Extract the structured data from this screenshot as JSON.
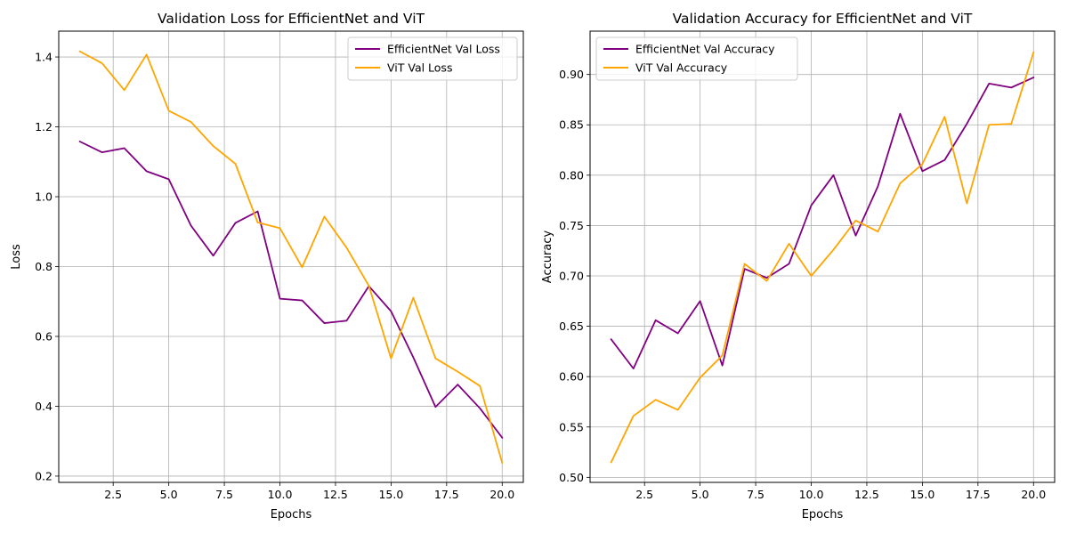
{
  "chart_data": [
    {
      "type": "line",
      "title": "Validation Loss for EfficientNet and ViT",
      "xlabel": "Epochs",
      "ylabel": "Loss",
      "xlim": [
        0.05,
        20.95
      ],
      "ylim": [
        0.182,
        1.474
      ],
      "xticks": [
        2.5,
        5.0,
        7.5,
        10.0,
        12.5,
        15.0,
        17.5,
        20.0
      ],
      "xtick_labels": [
        "2.5",
        "5.0",
        "7.5",
        "10.0",
        "12.5",
        "15.0",
        "17.5",
        "20.0"
      ],
      "yticks": [
        0.2,
        0.4,
        0.6,
        0.8,
        1.0,
        1.2,
        1.4
      ],
      "ytick_labels": [
        "0.2",
        "0.4",
        "0.6",
        "0.8",
        "1.0",
        "1.2",
        "1.4"
      ],
      "grid": true,
      "legend_position": "top-right",
      "x": [
        1,
        2,
        3,
        4,
        5,
        6,
        7,
        8,
        9,
        10,
        11,
        12,
        13,
        14,
        15,
        16,
        17,
        18,
        19,
        20
      ],
      "series": [
        {
          "name": "EfficientNet Val Loss",
          "color": "#800080",
          "values": [
            1.158,
            1.127,
            1.139,
            1.073,
            1.05,
            0.917,
            0.831,
            0.925,
            0.958,
            0.708,
            0.703,
            0.638,
            0.645,
            0.744,
            0.672,
            0.54,
            0.398,
            0.462,
            0.394,
            0.31
          ]
        },
        {
          "name": "ViT Val Loss",
          "color": "#FFA500",
          "values": [
            1.416,
            1.382,
            1.305,
            1.407,
            1.246,
            1.214,
            1.145,
            1.094,
            0.926,
            0.91,
            0.798,
            0.943,
            0.854,
            0.745,
            0.537,
            0.711,
            0.537,
            0.499,
            0.458,
            0.238
          ]
        }
      ]
    },
    {
      "type": "line",
      "title": "Validation Accuracy for EfficientNet and ViT",
      "xlabel": "Epochs",
      "ylabel": "Accuracy",
      "xlim": [
        0.05,
        20.95
      ],
      "ylim": [
        0.495,
        0.943
      ],
      "xticks": [
        2.5,
        5.0,
        7.5,
        10.0,
        12.5,
        15.0,
        17.5,
        20.0
      ],
      "xtick_labels": [
        "2.5",
        "5.0",
        "7.5",
        "10.0",
        "12.5",
        "15.0",
        "17.5",
        "20.0"
      ],
      "yticks": [
        0.5,
        0.55,
        0.6,
        0.65,
        0.7,
        0.75,
        0.8,
        0.85,
        0.9
      ],
      "ytick_labels": [
        "0.50",
        "0.55",
        "0.60",
        "0.65",
        "0.70",
        "0.75",
        "0.80",
        "0.85",
        "0.90"
      ],
      "grid": true,
      "legend_position": "top-left",
      "x": [
        1,
        2,
        3,
        4,
        5,
        6,
        7,
        8,
        9,
        10,
        11,
        12,
        13,
        14,
        15,
        16,
        17,
        18,
        19,
        20
      ],
      "series": [
        {
          "name": "EfficientNet Val Accuracy",
          "color": "#800080",
          "values": [
            0.637,
            0.608,
            0.656,
            0.643,
            0.675,
            0.611,
            0.707,
            0.698,
            0.712,
            0.77,
            0.8,
            0.74,
            0.789,
            0.861,
            0.804,
            0.815,
            0.851,
            0.891,
            0.887,
            0.897
          ]
        },
        {
          "name": "ViT Val Accuracy",
          "color": "#FFA500",
          "values": [
            0.515,
            0.561,
            0.577,
            0.567,
            0.599,
            0.621,
            0.712,
            0.695,
            0.732,
            0.7,
            0.726,
            0.755,
            0.744,
            0.792,
            0.811,
            0.858,
            0.772,
            0.85,
            0.851,
            0.922
          ]
        }
      ]
    }
  ]
}
